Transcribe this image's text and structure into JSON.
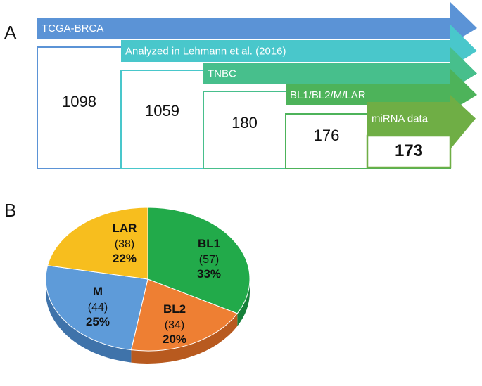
{
  "panels": {
    "a_label": "A",
    "b_label": "B"
  },
  "flow": {
    "steps": [
      {
        "label": "TCGA-BRCA",
        "count": "1098",
        "color": "#5B93D6",
        "bold": false
      },
      {
        "label": "Analyzed in Lehmann et al. (2016)",
        "count": "1059",
        "color": "#49C7CB",
        "bold": false
      },
      {
        "label": "TNBC",
        "count": "180",
        "color": "#47BF8C",
        "bold": false
      },
      {
        "label": "BL1/BL2/M/LAR",
        "count": "176",
        "color": "#4DB35A",
        "bold": false
      },
      {
        "label": "miRNA data",
        "count": "173",
        "color": "#6FAE45",
        "bold": true
      }
    ]
  },
  "chart_data": {
    "type": "pie",
    "slices": [
      {
        "label": "BL1",
        "n": "(57)",
        "pct": "33%",
        "value": 57,
        "color": "#22AA4A",
        "side": "#16803A"
      },
      {
        "label": "BL2",
        "n": "(34)",
        "pct": "20%",
        "value": 34,
        "color": "#EE7F33",
        "side": "#B85A1F"
      },
      {
        "label": "M",
        "n": "(44)",
        "pct": "25%",
        "value": 44,
        "color": "#5E9BD9",
        "side": "#3F73AA"
      },
      {
        "label": "LAR",
        "n": "(38)",
        "pct": "22%",
        "value": 38,
        "color": "#F7BE1E",
        "side": "#C28F0E"
      }
    ]
  }
}
